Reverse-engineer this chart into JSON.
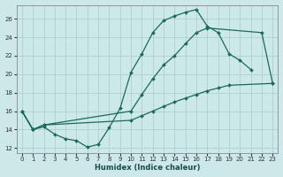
{
  "xlabel": "Humidex (Indice chaleur)",
  "xlim": [
    -0.5,
    23.5
  ],
  "ylim": [
    11.5,
    27.5
  ],
  "yticks": [
    12,
    14,
    16,
    18,
    20,
    22,
    24,
    26
  ],
  "xticks": [
    0,
    1,
    2,
    3,
    4,
    5,
    6,
    7,
    8,
    9,
    10,
    11,
    12,
    13,
    14,
    15,
    16,
    17,
    18,
    19,
    20,
    21,
    22,
    23
  ],
  "bg_color": "#cce8e8",
  "grid_color": "#aacccc",
  "line_color": "#1a6a5a",
  "line1_x": [
    0,
    1,
    2,
    3,
    4,
    5,
    6,
    7,
    8,
    9,
    10,
    11,
    12,
    13,
    14,
    15,
    16,
    17,
    18,
    19,
    20,
    21
  ],
  "line1_y": [
    16.0,
    14.0,
    14.3,
    13.5,
    13.0,
    12.8,
    12.1,
    12.4,
    14.2,
    16.3,
    20.2,
    22.2,
    24.5,
    25.8,
    26.3,
    26.7,
    27.0,
    25.2,
    24.5,
    22.2,
    21.5,
    20.5
  ],
  "line2_x": [
    0,
    1,
    2,
    10,
    11,
    12,
    13,
    14,
    15,
    16,
    17,
    22,
    23
  ],
  "line2_y": [
    16.0,
    14.0,
    14.5,
    16.0,
    17.8,
    19.5,
    21.0,
    22.0,
    23.3,
    24.5,
    25.0,
    24.5,
    19.0
  ],
  "line3_x": [
    0,
    1,
    2,
    10,
    11,
    12,
    13,
    14,
    15,
    16,
    17,
    18,
    19,
    23
  ],
  "line3_y": [
    16.0,
    14.0,
    14.5,
    15.0,
    15.5,
    16.0,
    16.5,
    17.0,
    17.4,
    17.8,
    18.2,
    18.5,
    18.8,
    19.0
  ]
}
